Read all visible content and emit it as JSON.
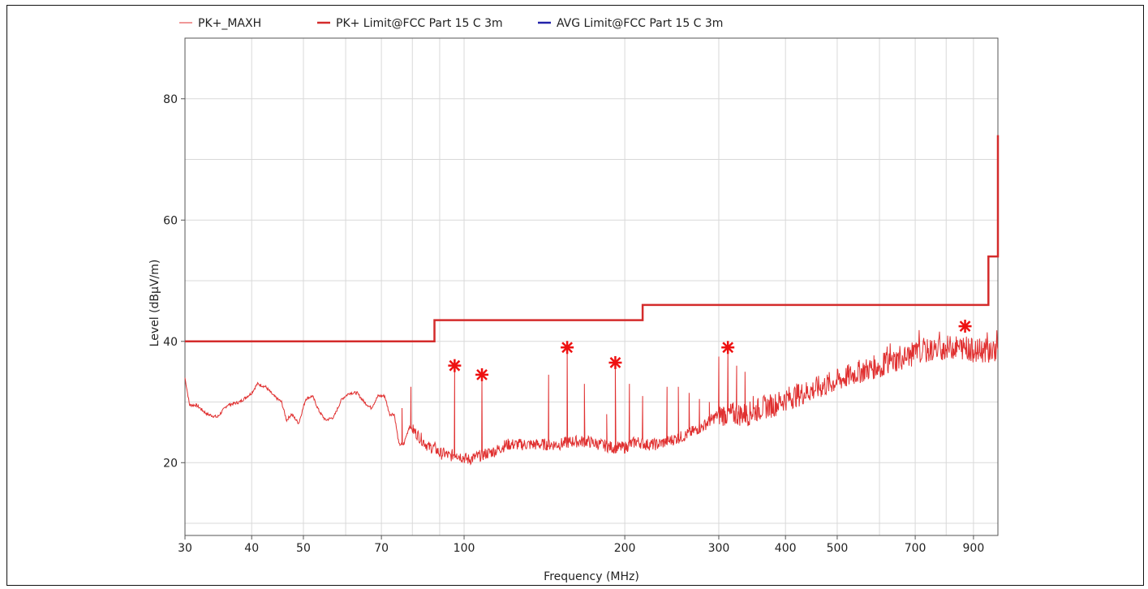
{
  "window": {
    "background": "#ffffff"
  },
  "chart_data": {
    "type": "line",
    "title": "",
    "xlabel": "Frequency (MHz)",
    "ylabel": "Level (dBµV/m)",
    "x_scale": "log",
    "xlim": [
      30,
      1000
    ],
    "ylim": [
      8,
      90
    ],
    "grid": true,
    "x_ticks": [
      30,
      40,
      50,
      70,
      100,
      200,
      300,
      400,
      500,
      700,
      900
    ],
    "x_tick_labels": [
      "30",
      "40",
      "50",
      "70",
      "100",
      "200",
      "300",
      "400",
      "500",
      "700",
      "900"
    ],
    "y_ticks": [
      20,
      40,
      60,
      80
    ],
    "y_tick_labels": [
      "20",
      "40",
      "60",
      "80"
    ],
    "legend_position": "top-left",
    "legend": [
      {
        "name": "PK+_MAXH",
        "color": "#e03030"
      },
      {
        "name": "PK+ Limit@FCC Part 15 C  3m",
        "color": "#d42b2b"
      },
      {
        "name": "AVG Limit@FCC Part 15 C  3m",
        "color": "#2222aa"
      }
    ],
    "series": [
      {
        "name": "PK+ Limit@FCC Part 15 C  3m",
        "color": "#d42b2b",
        "x": [
          30,
          88,
          88,
          216,
          216,
          960,
          960,
          1000,
          1000
        ],
        "y": [
          40,
          40,
          43.5,
          43.5,
          46,
          46,
          54,
          54,
          74
        ]
      },
      {
        "name": "PK+_MAXH",
        "color": "#e03030",
        "baseline": {
          "x": [
            30,
            30.6,
            31.5,
            33,
            34.5,
            36,
            38,
            40,
            41,
            42.5,
            44,
            45.5,
            46.5,
            47.5,
            49,
            50.5,
            52,
            53.5,
            55,
            57,
            59,
            61,
            63,
            65,
            67,
            69,
            71,
            72.5,
            74,
            75.5,
            77,
            79,
            81,
            84,
            86,
            88,
            90,
            92,
            94,
            96,
            99,
            102,
            106,
            110,
            115,
            120,
            130,
            140,
            150,
            160,
            170,
            180,
            190,
            200,
            210,
            220,
            230,
            240,
            260,
            280,
            300,
            320,
            340,
            360,
            380,
            400,
            450,
            500,
            550,
            600,
            650,
            700,
            750,
            800,
            850,
            900,
            950,
            1000
          ],
          "y": [
            34,
            29.5,
            29.5,
            28,
            27.5,
            29.5,
            30,
            31.5,
            33,
            32.5,
            31,
            30,
            27,
            28,
            26.5,
            30.5,
            31,
            28.5,
            27,
            27.5,
            30.5,
            31.5,
            31.5,
            30,
            29,
            31,
            31,
            28,
            28,
            23,
            23,
            26,
            25,
            23.5,
            22.5,
            22.5,
            21.5,
            21.5,
            21,
            21.5,
            21,
            20.5,
            21,
            21.5,
            22,
            23,
            23,
            23,
            23,
            23.5,
            23.5,
            23,
            22.5,
            22.5,
            23.5,
            23,
            23,
            23.5,
            24.5,
            26,
            28,
            28,
            28,
            29,
            29.5,
            30.5,
            32,
            33.5,
            35,
            36,
            37,
            38,
            38.5,
            39,
            39,
            38.5,
            38.5,
            38.5
          ]
        },
        "spikes": [
          {
            "x": 76.5,
            "y": 29
          },
          {
            "x": 79.5,
            "y": 32.5
          },
          {
            "x": 96,
            "y": 36
          },
          {
            "x": 108,
            "y": 34.5
          },
          {
            "x": 144,
            "y": 34.5
          },
          {
            "x": 156,
            "y": 39
          },
          {
            "x": 168,
            "y": 33
          },
          {
            "x": 185,
            "y": 28
          },
          {
            "x": 192,
            "y": 36.5
          },
          {
            "x": 204,
            "y": 33
          },
          {
            "x": 216,
            "y": 31
          },
          {
            "x": 240,
            "y": 32.5
          },
          {
            "x": 252,
            "y": 32.5
          },
          {
            "x": 264,
            "y": 31.5
          },
          {
            "x": 276,
            "y": 30.5
          },
          {
            "x": 288,
            "y": 30
          },
          {
            "x": 300,
            "y": 37.5
          },
          {
            "x": 312,
            "y": 39
          },
          {
            "x": 324,
            "y": 36
          },
          {
            "x": 336,
            "y": 35
          },
          {
            "x": 348,
            "y": 31
          }
        ]
      },
      {
        "name": "AVG Limit@FCC Part 15 C  3m",
        "color": "#2222aa",
        "x": [],
        "y": []
      }
    ],
    "markers": [
      {
        "x": 96,
        "y": 36
      },
      {
        "x": 108,
        "y": 34.5
      },
      {
        "x": 156,
        "y": 39
      },
      {
        "x": 192,
        "y": 36.5
      },
      {
        "x": 312,
        "y": 39
      },
      {
        "x": 868,
        "y": 42.5
      }
    ]
  }
}
